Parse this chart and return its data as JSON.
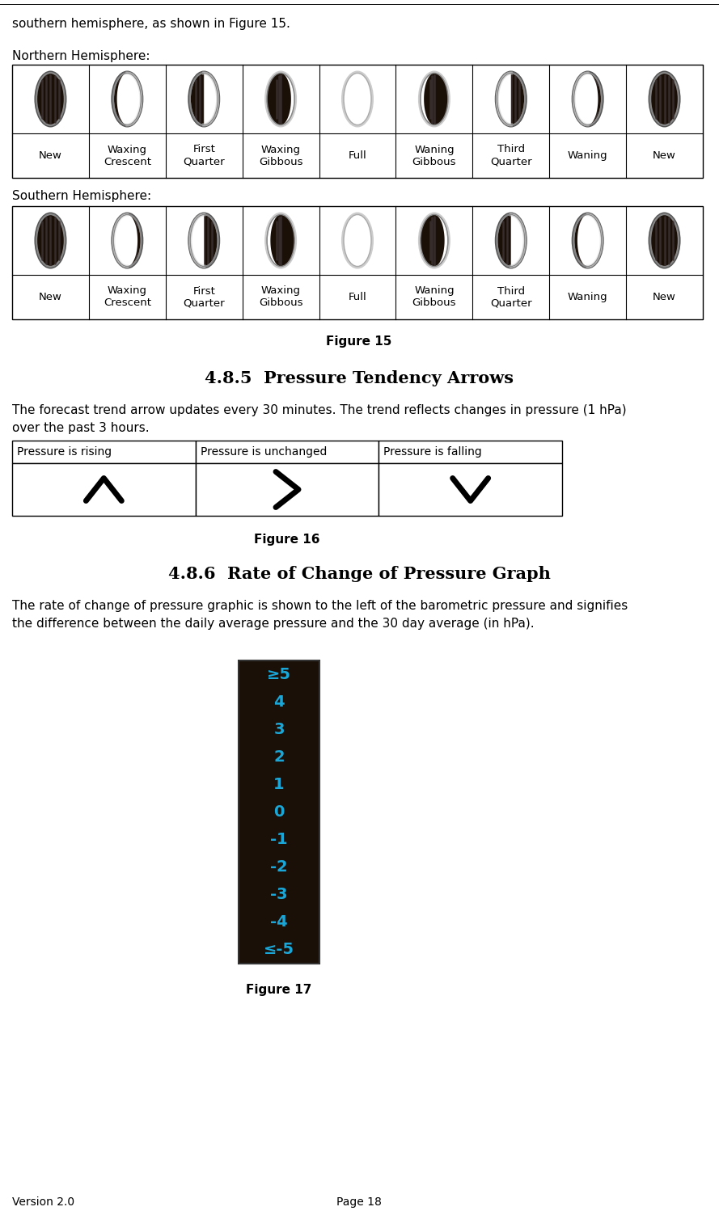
{
  "bg_color": "#ffffff",
  "text_color": "#000000",
  "intro_text": "southern hemisphere, as shown in Figure 15.",
  "northern_label": "Northern Hemisphere:",
  "southern_label": "Southern Hemisphere:",
  "moon_labels": [
    "New",
    "Waxing\nCrescent",
    "First\nQuarter",
    "Waxing\nGibbous",
    "Full",
    "Waning\nGibbous",
    "Third\nQuarter",
    "Waning",
    "New"
  ],
  "figure15_caption": "Figure 15",
  "section_485_title": "4.8.5  Pressure Tendency Arrows",
  "section_485_text_line1": "The forecast trend arrow updates every 30 minutes. The trend reflects changes in pressure (1 hPa)",
  "section_485_text_line2": "over the past 3 hours.",
  "pressure_headers": [
    "Pressure is rising",
    "Pressure is unchanged",
    "Pressure is falling"
  ],
  "figure16_caption": "Figure 16",
  "section_486_title": "4.8.6  Rate of Change of Pressure Graph",
  "section_486_text_line1": "The rate of change of pressure graphic is shown to the left of the barometric pressure and signifies",
  "section_486_text_line2": "the difference between the daily average pressure and the 30 day average (in hPa).",
  "figure17_caption": "Figure 17",
  "gauge_labels": [
    "≥5",
    "4",
    "3",
    "2",
    "1",
    "0",
    "-1",
    "-2",
    "-3",
    "-4",
    "≤-5"
  ],
  "gauge_color": "#1aa7d8",
  "gauge_bg": "#1a1008",
  "version_text": "Version 2.0",
  "page_text": "Page 18",
  "moon_dark_color": "#1a1008",
  "moon_stripe_color": "#3a3030",
  "moon_border_color": "#888888"
}
